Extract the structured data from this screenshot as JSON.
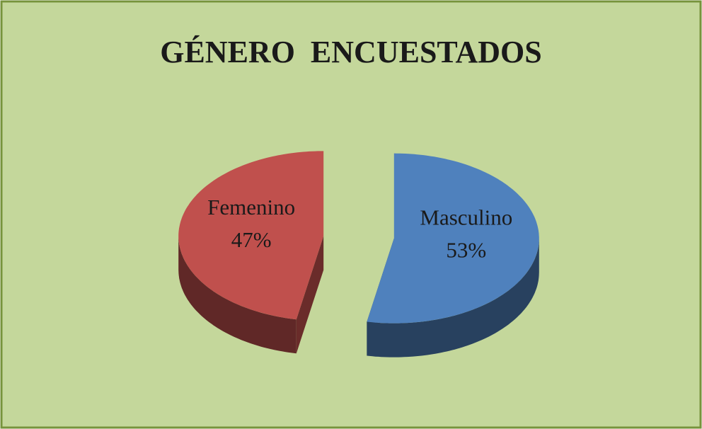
{
  "chart_data": {
    "type": "pie",
    "title": "GÉNERO  ENCUESTADOS",
    "categories": [
      "Masculino",
      "Femenino"
    ],
    "values": [
      53,
      47
    ],
    "value_labels": [
      "53%",
      "47%"
    ],
    "colors": [
      "#4f81bd",
      "#c0504d"
    ]
  }
}
